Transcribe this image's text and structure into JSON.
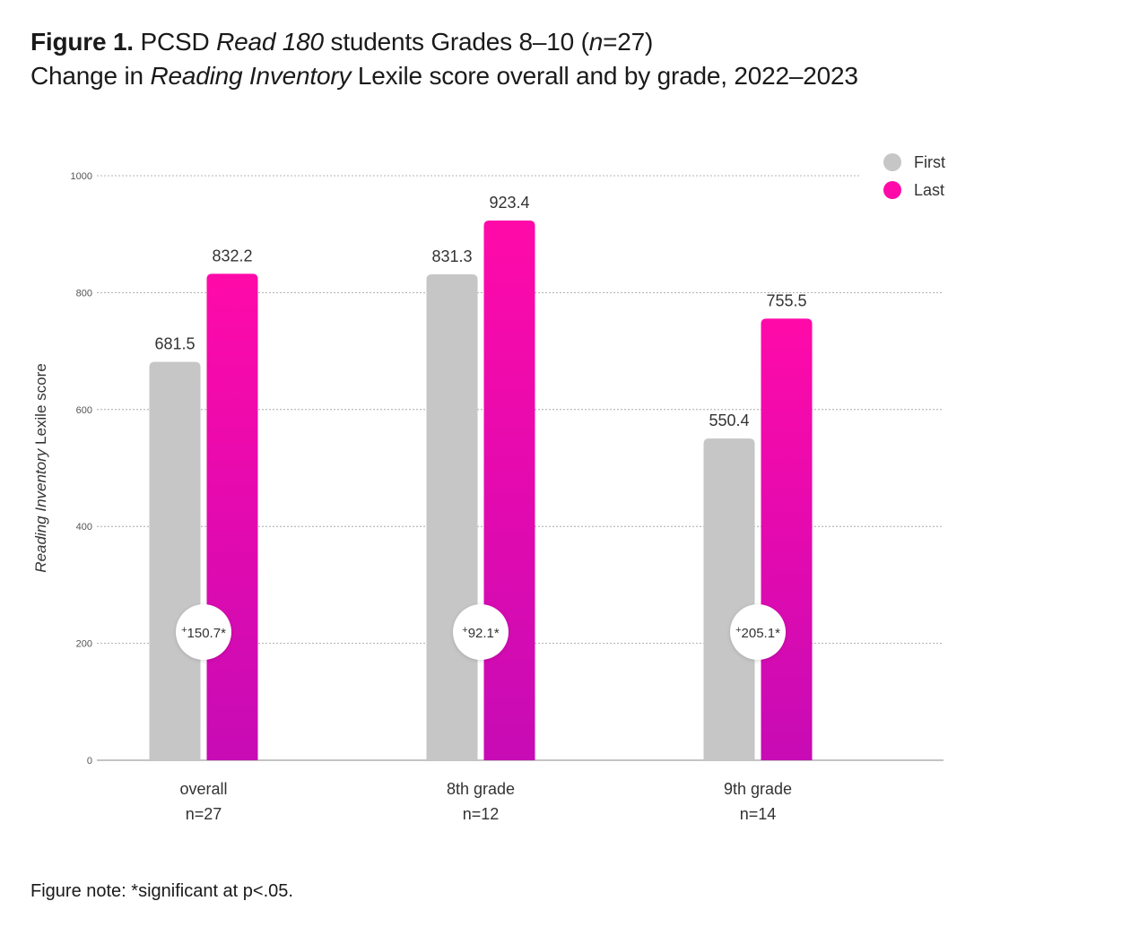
{
  "figure": {
    "label": "Figure 1.",
    "title_pre": "PCSD",
    "title_italic": "Read 180",
    "title_post": "students Grades 8–10 (",
    "title_n_italic": "n",
    "title_end": "=27)",
    "subtitle_pre": "Change in",
    "subtitle_italic": "Reading Inventory",
    "subtitle_post": "Lexile score overall and by grade, 2022–2023",
    "note": "Figure note: *significant at p<.05."
  },
  "chart_data": {
    "type": "bar",
    "categories": [
      "overall",
      "8th grade",
      "9th grade"
    ],
    "category_n": [
      "n=27",
      "n=12",
      "n=14"
    ],
    "series": [
      {
        "name": "First",
        "values": [
          681.5,
          831.3,
          550.4
        ],
        "labels": [
          "681.5",
          "831.3",
          "550.4"
        ],
        "color": "#c6c6c6"
      },
      {
        "name": "Last",
        "values": [
          832.2,
          923.4,
          755.5
        ],
        "labels": [
          "832.2",
          "923.4",
          "755.5"
        ],
        "color": "#ff0aa9"
      }
    ],
    "differences": [
      "150.7*",
      "92.1*",
      "205.1*"
    ],
    "difference_prefix": "+",
    "ylabel_italic": "Reading Inventory",
    "ylabel_rest": "Lexile score",
    "ylim": [
      0,
      1000
    ],
    "yticks": [
      0,
      200,
      400,
      600,
      800,
      1000
    ],
    "grid": true,
    "legend_position": "top-right",
    "last_gradient_bottom": "#c70bb5"
  }
}
